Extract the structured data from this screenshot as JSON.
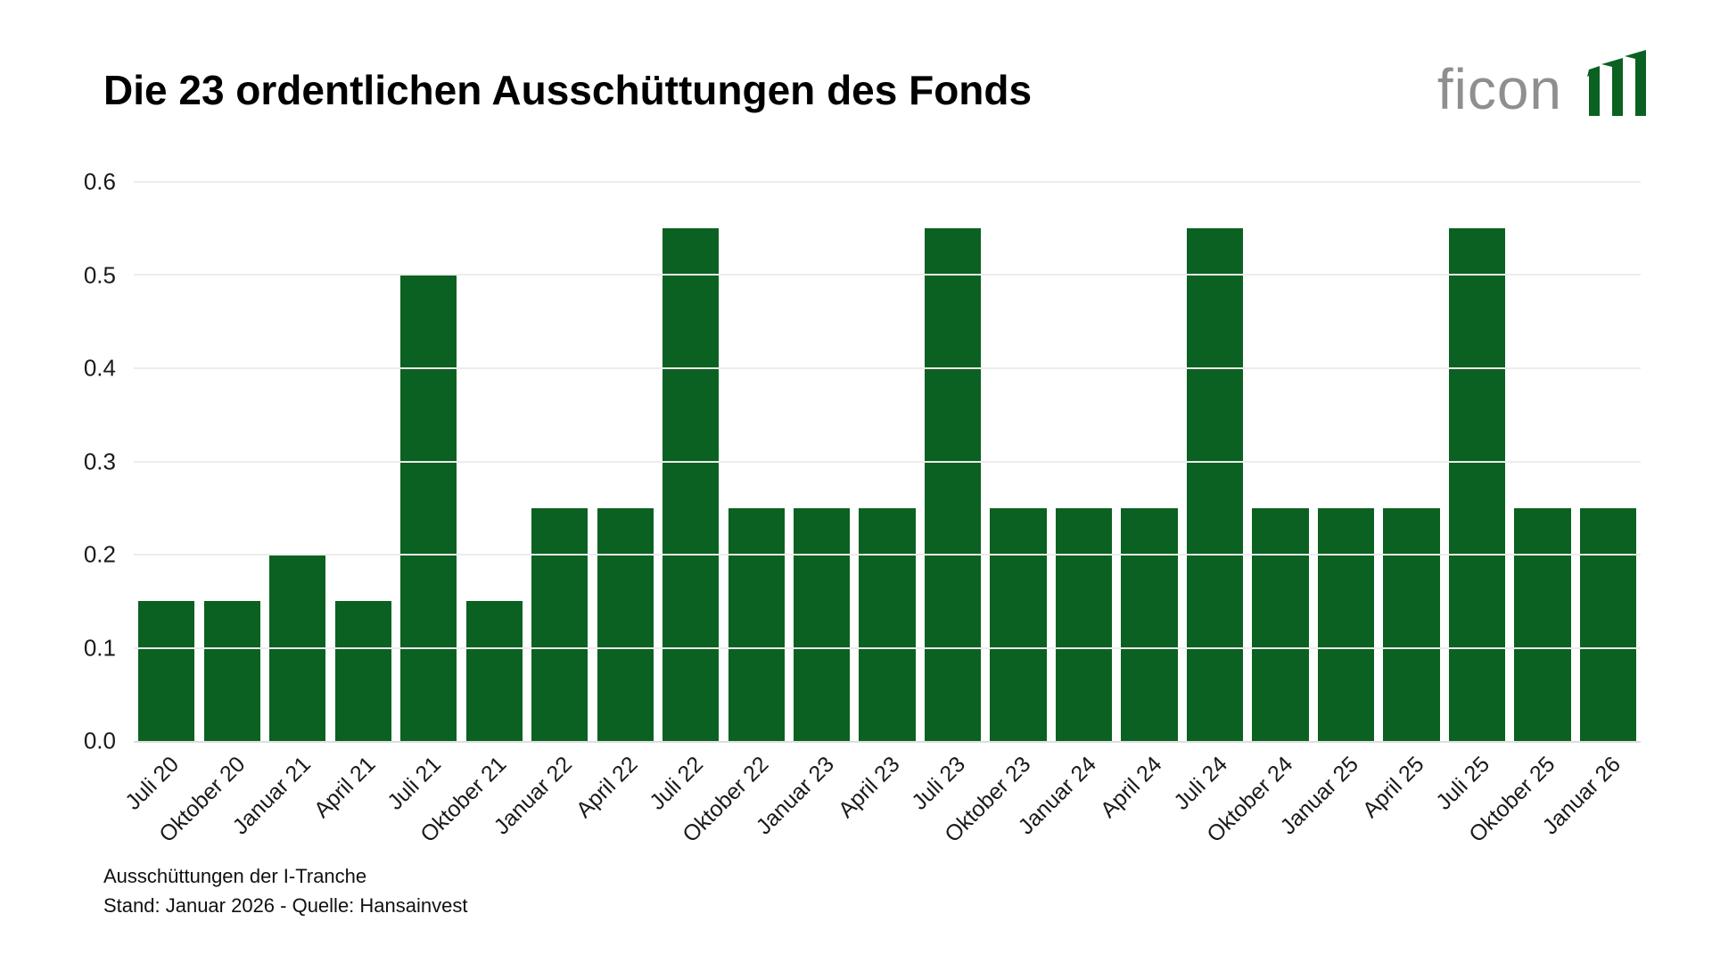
{
  "title": "Die 23 ordentlichen Ausschüttungen des Fonds",
  "logo": {
    "text": "ficon",
    "text_color": "#8f8f8f",
    "bars_color": "#0b6121",
    "bars_icon": "three-rising-flag-bars"
  },
  "chart_data": {
    "type": "bar",
    "title": "Die 23 ordentlichen Ausschüttungen des Fonds",
    "categories": [
      "Juli 20",
      "Oktober 20",
      "Januar 21",
      "April 21",
      "Juli 21",
      "Oktober 21",
      "Januar 22",
      "April 22",
      "Juli 22",
      "Oktober 22",
      "Januar 23",
      "April 23",
      "Juli 23",
      "Oktober 23",
      "Januar 24",
      "April 24",
      "Juli 24",
      "Oktober 24",
      "Januar 25",
      "April 25",
      "Juli 25",
      "Oktober 25",
      "Januar 26"
    ],
    "values": [
      0.15,
      0.15,
      0.2,
      0.15,
      0.5,
      0.15,
      0.25,
      0.25,
      0.55,
      0.25,
      0.25,
      0.25,
      0.55,
      0.25,
      0.25,
      0.25,
      0.55,
      0.25,
      0.25,
      0.25,
      0.55,
      0.25,
      0.25
    ],
    "xlabel": "",
    "ylabel": "",
    "ylim": [
      0,
      0.6
    ],
    "yticks": [
      0.0,
      0.1,
      0.2,
      0.3,
      0.4,
      0.5,
      0.6
    ],
    "grid": true,
    "legend": false,
    "bar_color": "#0b6121",
    "gridline_color": "#ececec",
    "tick_label_rotation": 45
  },
  "footer": {
    "line1": "Ausschüttungen der I-Tranche",
    "line2": "Stand: Januar 2026 - Quelle: Hansainvest"
  }
}
